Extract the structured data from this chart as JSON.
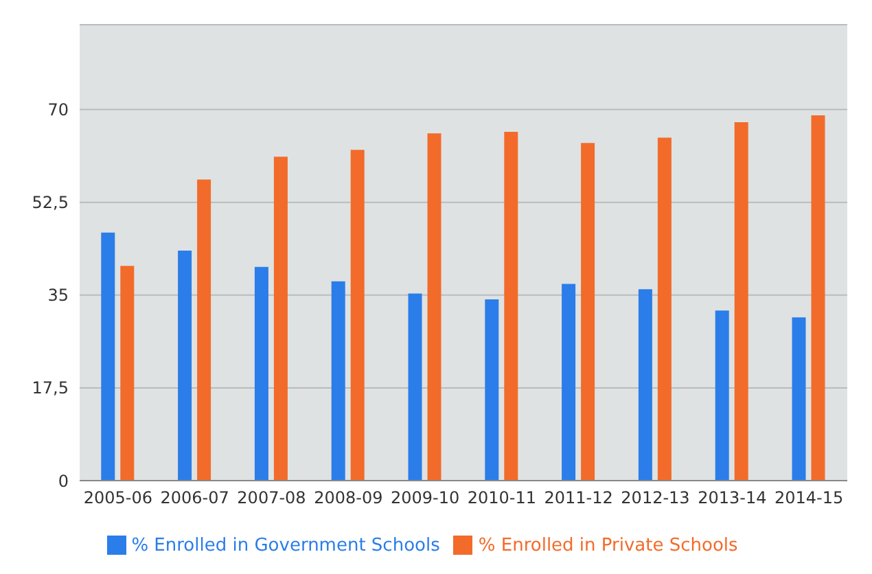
{
  "chart_data": {
    "type": "bar",
    "categories": [
      "2005-06",
      "2006-07",
      "2007-08",
      "2008-09",
      "2009-10",
      "2010-11",
      "2011-12",
      "2012-13",
      "2013-14",
      "2014-15"
    ],
    "series": [
      {
        "name": "% Enrolled in Government Schools",
        "color": "#2b7de9",
        "values": [
          46.8,
          43.4,
          40.3,
          37.6,
          35.3,
          34.2,
          37.1,
          36.1,
          32.1,
          30.8
        ]
      },
      {
        "name": "% Enrolled in Private Schools",
        "color": "#f26b2a",
        "values": [
          40.5,
          56.8,
          61.1,
          62.4,
          65.5,
          65.8,
          63.7,
          64.7,
          67.6,
          68.9
        ]
      }
    ],
    "ylim": [
      0,
      86
    ],
    "yticks": [
      0,
      {
        "value": 17.5,
        "label": "17,5"
      },
      35,
      {
        "value": 52.5,
        "label": "52,5"
      },
      70
    ],
    "grid": "y",
    "legend": "bottom"
  }
}
